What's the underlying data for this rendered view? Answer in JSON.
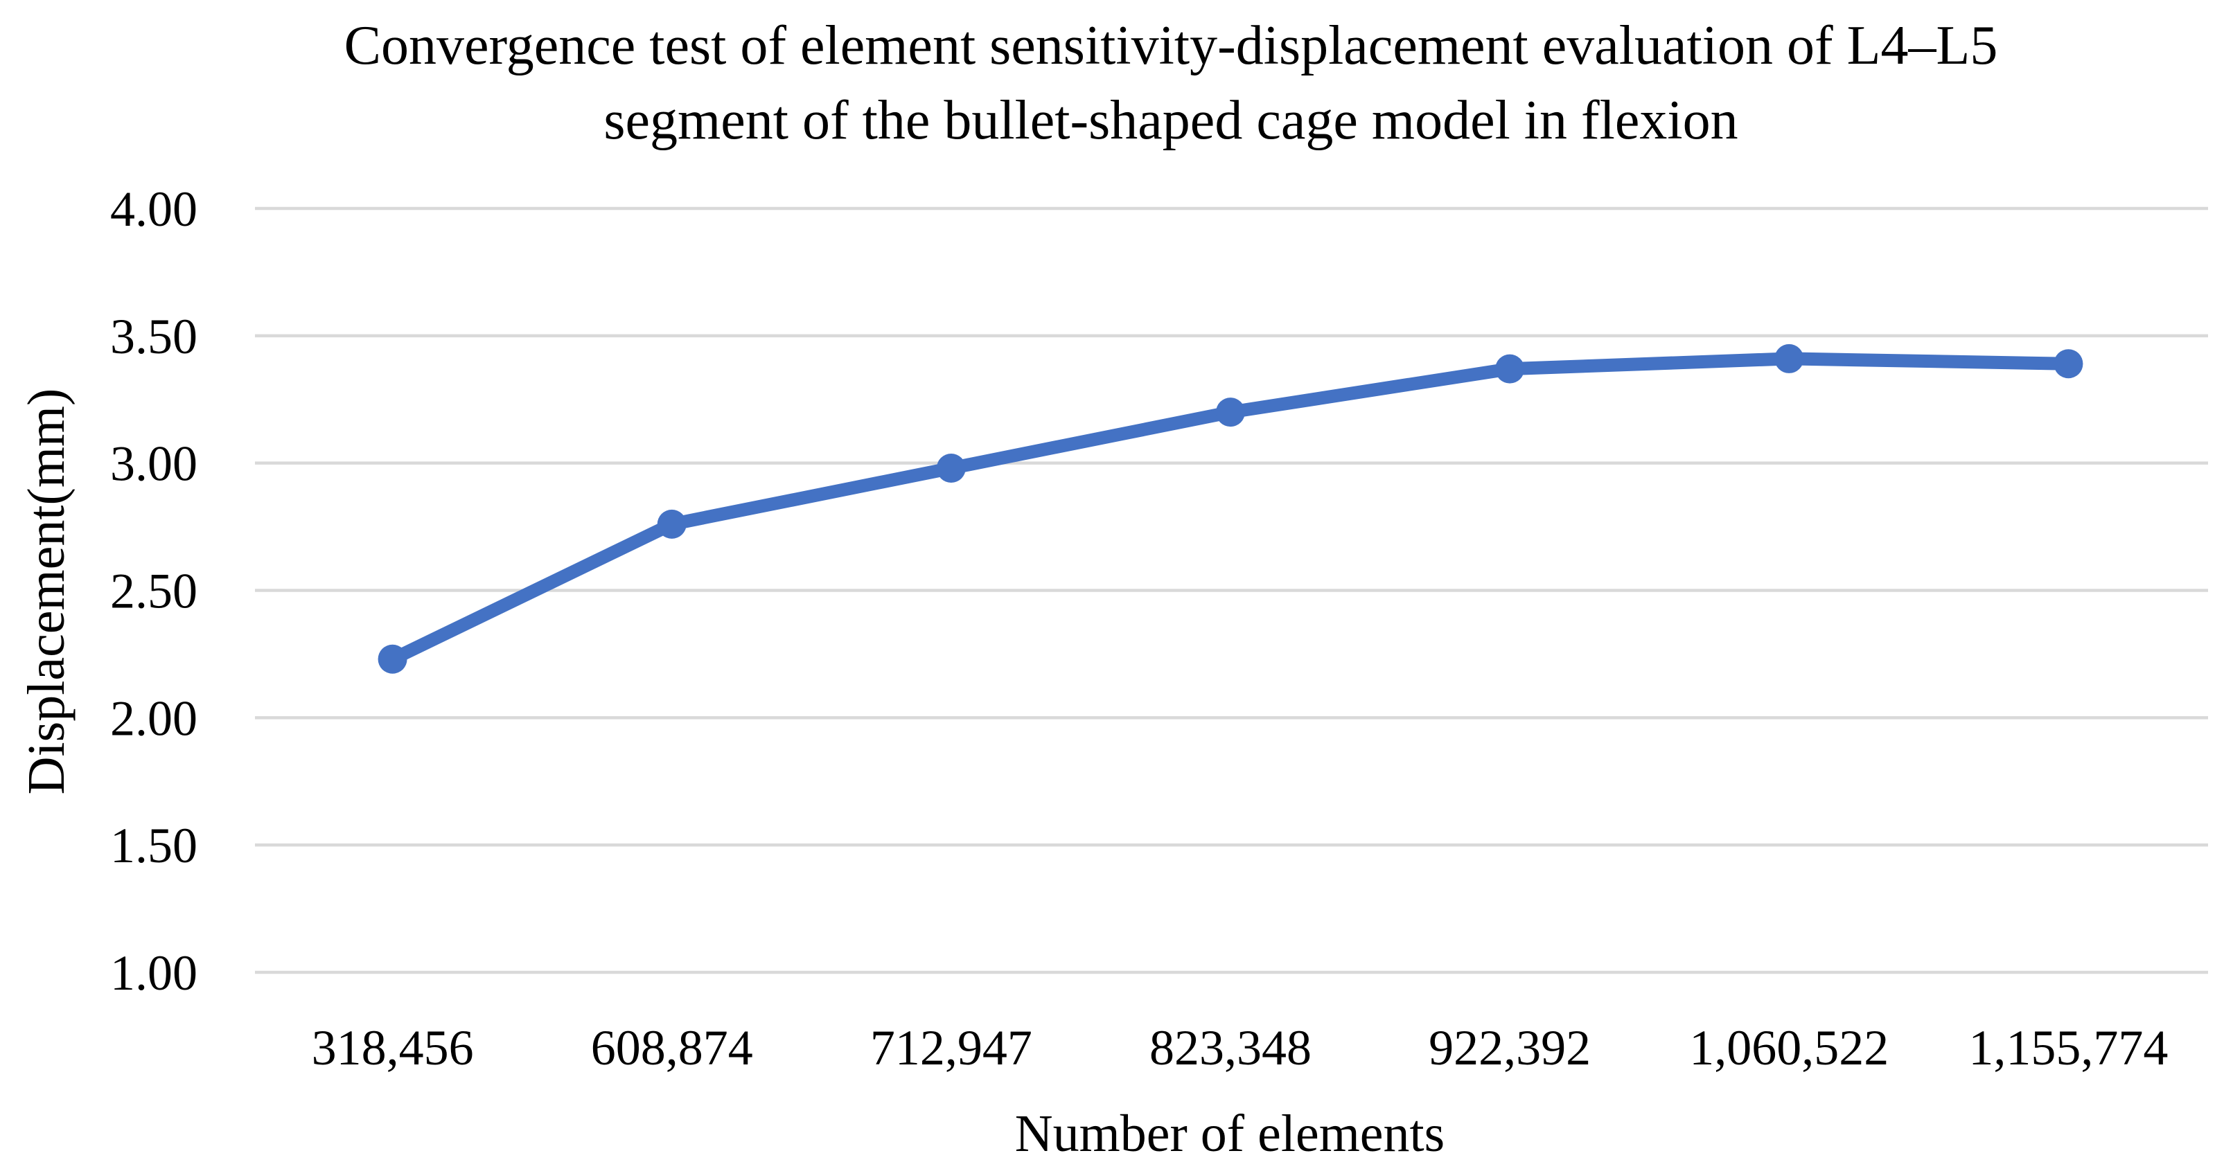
{
  "chart_data": {
    "type": "line",
    "title": "Convergence test of element sensitivity-displacement evaluation of L4–L5 segment of the bullet-shaped cage model in flexion",
    "title_lines": [
      "Convergence test of element sensitivity-displacement evaluation of L4–L5",
      "segment of the bullet-shaped cage model in flexion"
    ],
    "categories": [
      "318,456",
      "608,874",
      "712,947",
      "823,348",
      "922,392",
      "1,060,522",
      "1,155,774"
    ],
    "values": [
      2.23,
      2.76,
      2.98,
      3.2,
      3.37,
      3.41,
      3.39
    ],
    "xlabel": "Number of elements",
    "ylabel": "Displacement(mm)",
    "y_ticks": [
      "4.00",
      "3.50",
      "3.00",
      "2.50",
      "2.00",
      "1.50",
      "1.00"
    ],
    "ylim": [
      1.0,
      4.0
    ],
    "grid": "horizontal-only",
    "legend": "none",
    "colors": {
      "line": "#4472C4",
      "marker": "#4472C4",
      "gridline": "#D9D9D9",
      "text": "#000000",
      "background": "#FFFFFF"
    }
  }
}
